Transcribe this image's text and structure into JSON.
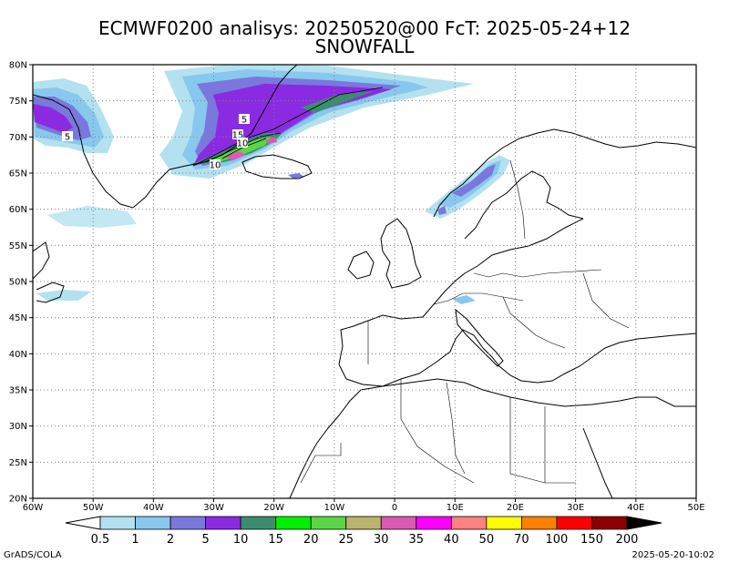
{
  "header": {
    "title_line1": "ECMWF0200 analisys: 20250520@00 FcT: 2025-05-24+12",
    "title_line2": "SNOWFALL"
  },
  "map": {
    "lon_range": [
      -60,
      50
    ],
    "lat_range": [
      20,
      80
    ],
    "grid": true,
    "lat_ticks": [
      "20N",
      "25N",
      "30N",
      "35N",
      "40N",
      "45N",
      "50N",
      "55N",
      "60N",
      "65N",
      "70N",
      "75N",
      "80N"
    ],
    "lon_ticks": [
      "60W",
      "50W",
      "40W",
      "30W",
      "20W",
      "10W",
      "0",
      "10E",
      "20E",
      "30E",
      "40E",
      "50E"
    ],
    "contour_labels": [
      "5",
      "5",
      "15",
      "10",
      "10"
    ]
  },
  "colorbar": {
    "levels": [
      "0.5",
      "1",
      "2",
      "5",
      "10",
      "15",
      "20",
      "25",
      "30",
      "35",
      "40",
      "50",
      "70",
      "100",
      "150",
      "200"
    ],
    "colors": [
      "#b4e1f0",
      "#88c8ee",
      "#7a78dd",
      "#8a2be2",
      "#3c8c6e",
      "#00f000",
      "#5ad646",
      "#bab46e",
      "#dc5ab4",
      "#ff00ff",
      "#ff8080",
      "#ffff00",
      "#ff8000",
      "#ff0000",
      "#8c0000"
    ],
    "under_color": "#ffffff",
    "over_color": "#000000"
  },
  "footer": {
    "left": "GrADS/COLA",
    "right": "2025-05-20-10:02"
  }
}
